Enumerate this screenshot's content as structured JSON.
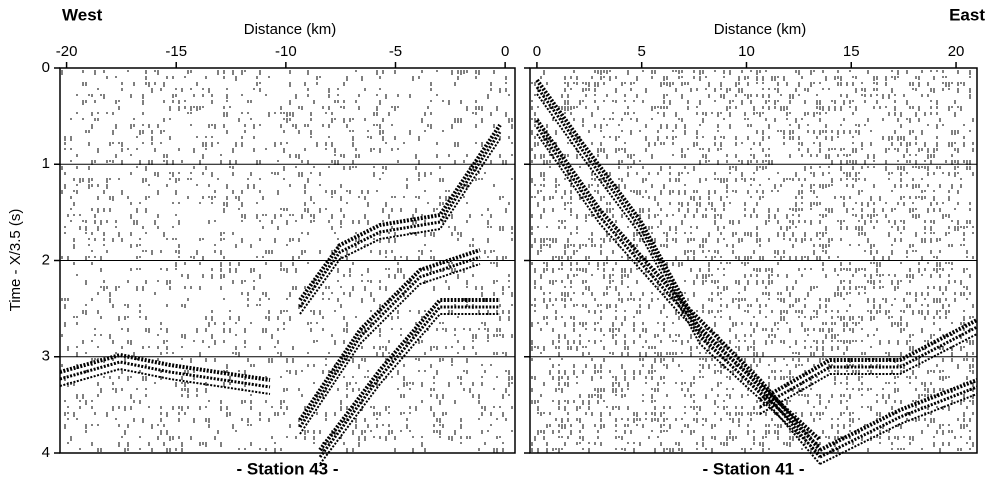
{
  "chart_data": [
    {
      "type": "seismic",
      "corner_label": "West",
      "x_label": "Distance (km)",
      "y_label": "Time - X/3.5 (s)",
      "caption": "- Station 43 -",
      "xlim": [
        -20.3,
        0.45
      ],
      "xticks": [
        -20,
        -15,
        -10,
        -5,
        0
      ],
      "ylim": [
        0,
        4
      ],
      "yticks": [
        0,
        1,
        2,
        3,
        4
      ],
      "grid": true
    },
    {
      "type": "seismic",
      "corner_label": "East",
      "x_label": "Distance (km)",
      "caption": "- Station 41 -",
      "xlim": [
        -0.33,
        21
      ],
      "xticks": [
        0,
        5,
        10,
        15,
        20
      ],
      "ylim": [
        0,
        4
      ],
      "yticks": [
        0,
        1,
        2,
        3,
        4
      ],
      "grid": true
    }
  ]
}
